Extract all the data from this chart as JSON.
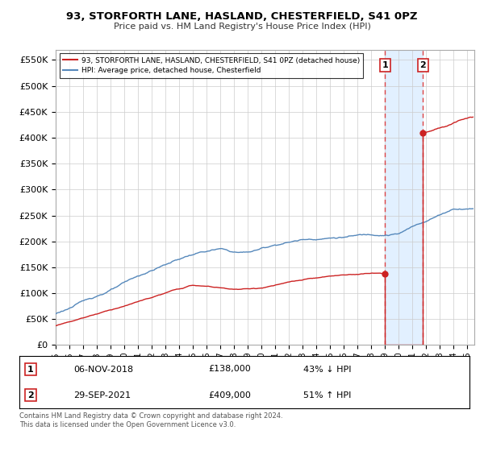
{
  "title": "93, STORFORTH LANE, HASLAND, CHESTERFIELD, S41 0PZ",
  "subtitle": "Price paid vs. HM Land Registry's House Price Index (HPI)",
  "ytick_values": [
    0,
    50000,
    100000,
    150000,
    200000,
    250000,
    300000,
    350000,
    400000,
    450000,
    500000,
    550000
  ],
  "xmin": 1995,
  "xmax": 2025.5,
  "ymin": 0,
  "ymax": 570000,
  "hpi_color": "#5588bb",
  "price_color": "#cc2222",
  "dashed_color": "#dd4444",
  "highlight_color": "#ddeeff",
  "marker1_year": 2019.0,
  "marker1_price": 138000,
  "marker2_year": 2021.75,
  "marker2_price": 409000,
  "legend_label1": "93, STORFORTH LANE, HASLAND, CHESTERFIELD, S41 0PZ (detached house)",
  "legend_label2": "HPI: Average price, detached house, Chesterfield",
  "annotation1_date": "06-NOV-2018",
  "annotation1_price": "£138,000",
  "annotation1_hpi": "43% ↓ HPI",
  "annotation2_date": "29-SEP-2021",
  "annotation2_price": "£409,000",
  "annotation2_hpi": "51% ↑ HPI",
  "footer": "Contains HM Land Registry data © Crown copyright and database right 2024.\nThis data is licensed under the Open Government Licence v3.0.",
  "background_color": "#ffffff",
  "grid_color": "#cccccc"
}
